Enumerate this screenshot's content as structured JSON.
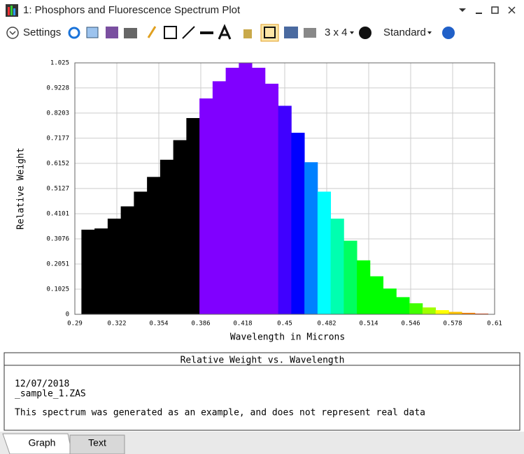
{
  "window": {
    "title": "1: Phosphors and Fluorescence Spectrum Plot"
  },
  "toolbar": {
    "settings": "Settings",
    "layout": "3 x 4",
    "mode": "Standard"
  },
  "chart_data": {
    "type": "bar",
    "x_label": "Wavelength in Microns",
    "y_label": "Relative Weight",
    "x": [
      0.3,
      0.31,
      0.32,
      0.33,
      0.34,
      0.35,
      0.36,
      0.37,
      0.38,
      0.39,
      0.4,
      0.41,
      0.42,
      0.43,
      0.44,
      0.45,
      0.46,
      0.47,
      0.48,
      0.49,
      0.5,
      0.51,
      0.52,
      0.53,
      0.54,
      0.55,
      0.56,
      0.57,
      0.58,
      0.59,
      0.6
    ],
    "values": [
      0.345,
      0.35,
      0.39,
      0.44,
      0.5,
      0.56,
      0.63,
      0.71,
      0.8,
      0.88,
      0.95,
      1.005,
      1.025,
      1.005,
      0.94,
      0.85,
      0.74,
      0.62,
      0.5,
      0.39,
      0.3,
      0.22,
      0.155,
      0.105,
      0.07,
      0.045,
      0.028,
      0.017,
      0.01,
      0.006,
      0.003
    ],
    "colors": [
      "#000000",
      "#000000",
      "#000000",
      "#000000",
      "#000000",
      "#000000",
      "#000000",
      "#000000",
      "#000000",
      "#8000ff",
      "#8000ff",
      "#8000ff",
      "#8000ff",
      "#8000ff",
      "#8000ff",
      "#4000ff",
      "#0000ff",
      "#0080ff",
      "#00ffff",
      "#00ffb0",
      "#00ff60",
      "#00ff00",
      "#00ff00",
      "#00ff00",
      "#00ff00",
      "#40ff00",
      "#a0ff00",
      "#ffff00",
      "#ffc000",
      "#ff8000",
      "#ff4000"
    ],
    "xlim": [
      0.29,
      0.61
    ],
    "xticks": [
      0.29,
      0.322,
      0.354,
      0.386,
      0.418,
      0.45,
      0.482,
      0.514,
      0.546,
      0.578,
      0.61
    ],
    "ylim": [
      0,
      1.025
    ],
    "yticks": [
      0,
      0.1025,
      0.2051,
      0.3076,
      0.4101,
      0.5127,
      0.6152,
      0.7177,
      0.8203,
      0.9228,
      1.025
    ],
    "grid": true
  },
  "textbox": {
    "title": "Relative Weight vs. Wavelength",
    "lines": [
      "12/07/2018",
      "_sample_1.ZAS",
      "This spectrum was generated as an example, and does not represent real data"
    ]
  },
  "tabs": [
    "Graph",
    "Text"
  ]
}
